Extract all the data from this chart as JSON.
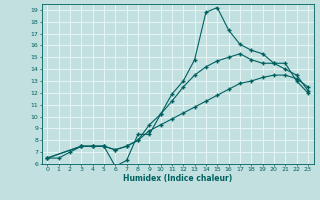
{
  "title": "",
  "xlabel": "Humidex (Indice chaleur)",
  "xlim": [
    -0.5,
    23.5
  ],
  "ylim": [
    6,
    19.5
  ],
  "yticks": [
    6,
    7,
    8,
    9,
    10,
    11,
    12,
    13,
    14,
    15,
    16,
    17,
    18,
    19
  ],
  "xticks": [
    0,
    1,
    2,
    3,
    4,
    5,
    6,
    7,
    8,
    9,
    10,
    11,
    12,
    13,
    14,
    15,
    16,
    17,
    18,
    19,
    20,
    21,
    22,
    23
  ],
  "bg_color": "#c2e0e0",
  "line_color": "#006060",
  "grid_color": "#e8f4f4",
  "line1_x": [
    0,
    1,
    2,
    3,
    4,
    5,
    6,
    7,
    8,
    9,
    10,
    11,
    12,
    13,
    14,
    15,
    16,
    17,
    18,
    19,
    20,
    21,
    22,
    23
  ],
  "line1_y": [
    6.5,
    6.5,
    7.0,
    7.5,
    7.5,
    7.5,
    5.8,
    6.3,
    8.5,
    8.5,
    10.2,
    11.9,
    13.0,
    14.8,
    18.8,
    19.2,
    17.3,
    16.1,
    15.6,
    15.3,
    14.5,
    14.5,
    13.0,
    12.0
  ],
  "line2_x": [
    0,
    3,
    4,
    5,
    6,
    7,
    8,
    9,
    10,
    11,
    12,
    13,
    14,
    15,
    16,
    17,
    18,
    19,
    20,
    21,
    22,
    23
  ],
  "line2_y": [
    6.5,
    7.5,
    7.5,
    7.5,
    7.2,
    7.5,
    8.0,
    9.3,
    10.2,
    11.3,
    12.5,
    13.5,
    14.2,
    14.7,
    15.0,
    15.3,
    14.8,
    14.5,
    14.5,
    14.0,
    13.5,
    12.2
  ],
  "line3_x": [
    0,
    3,
    4,
    5,
    6,
    7,
    8,
    9,
    10,
    11,
    12,
    13,
    14,
    15,
    16,
    17,
    18,
    19,
    20,
    21,
    22,
    23
  ],
  "line3_y": [
    6.5,
    7.5,
    7.5,
    7.5,
    7.2,
    7.5,
    8.0,
    8.8,
    9.3,
    9.8,
    10.3,
    10.8,
    11.3,
    11.8,
    12.3,
    12.8,
    13.0,
    13.3,
    13.5,
    13.5,
    13.2,
    12.5
  ]
}
